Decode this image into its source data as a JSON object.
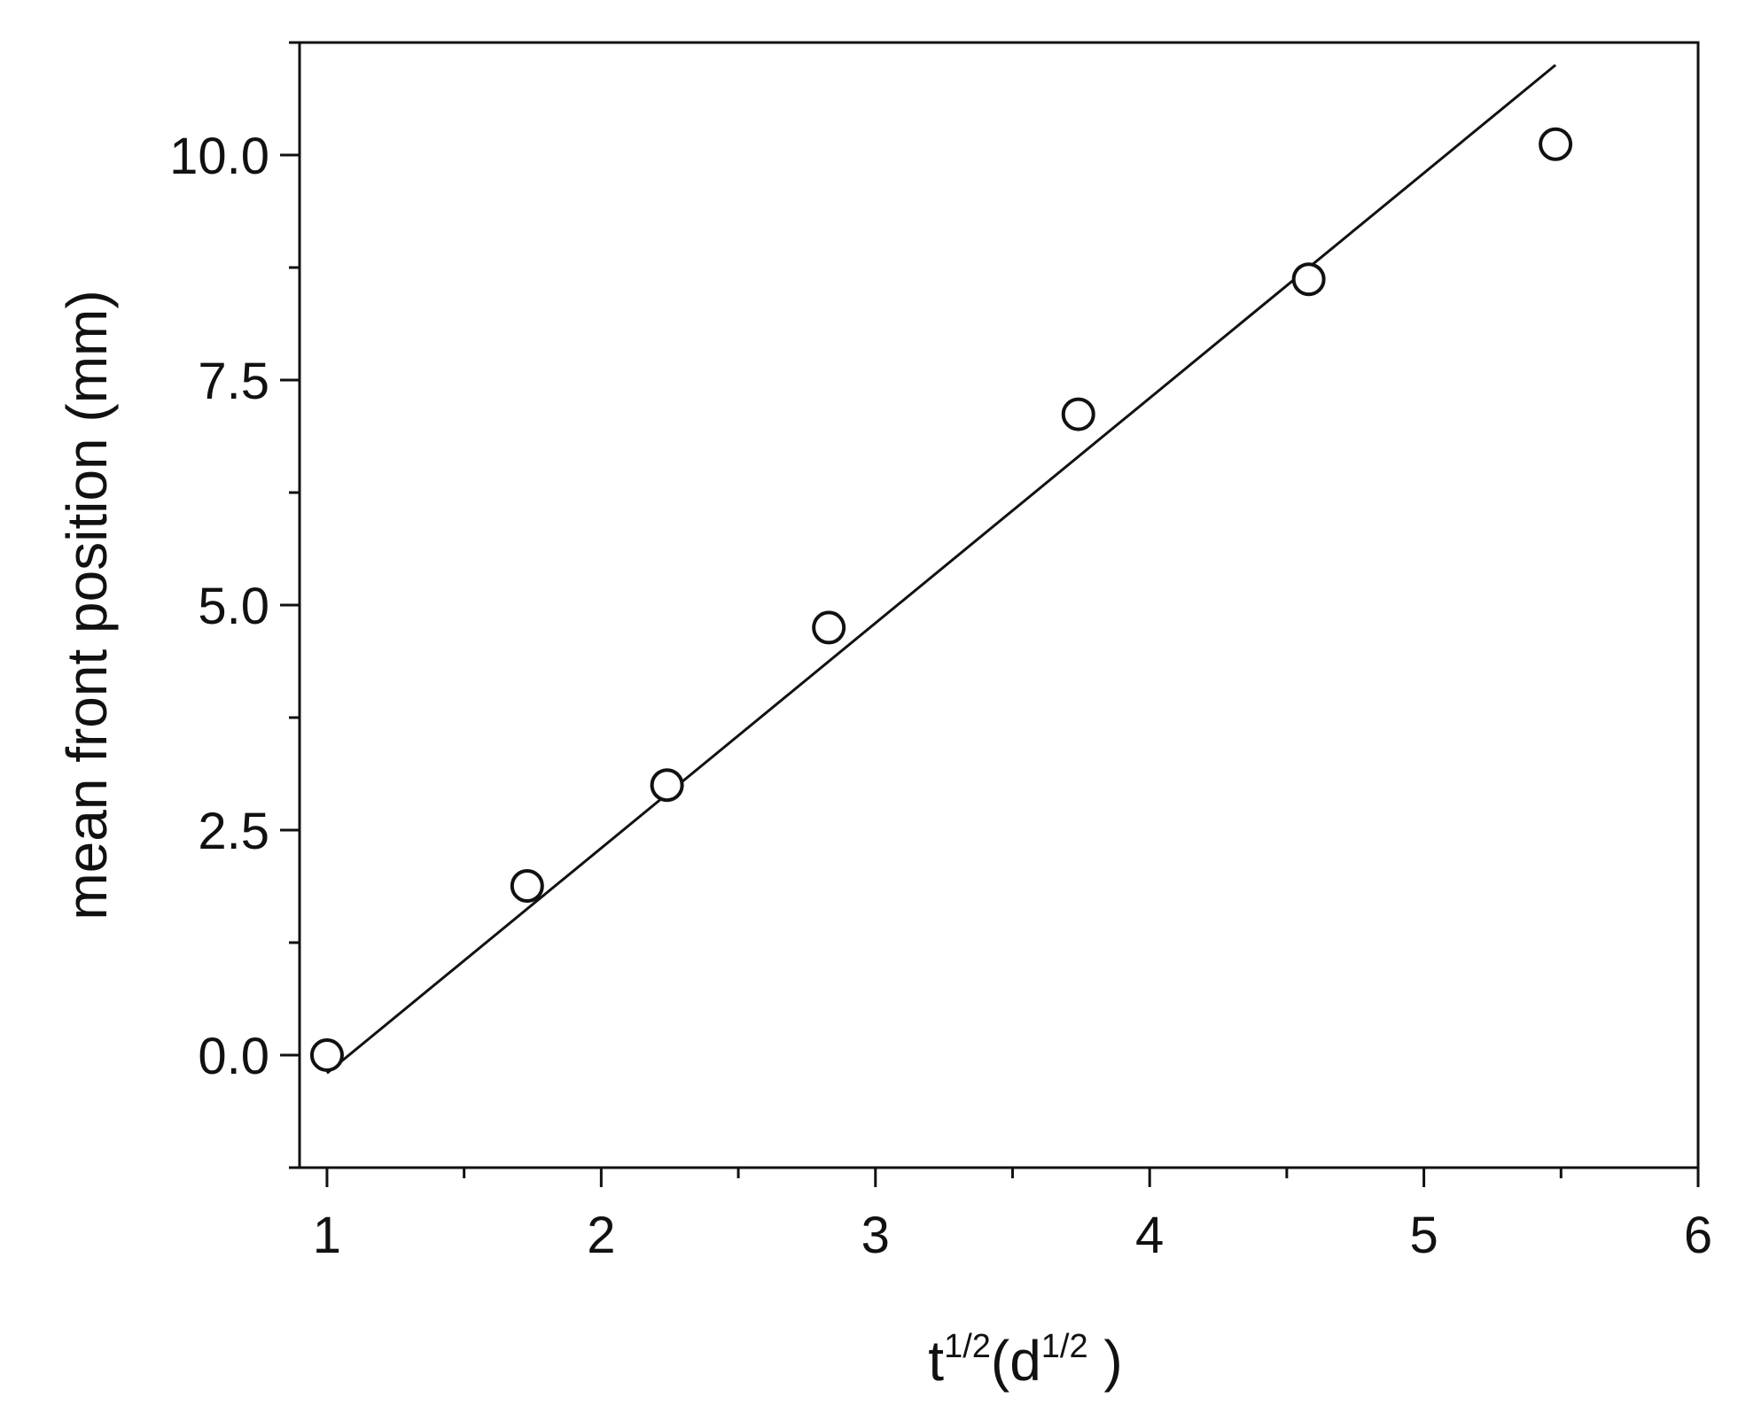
{
  "chart_data": {
    "type": "scatter",
    "xlabel": {
      "base": "t",
      "sup": "1/2",
      "mid": "(d",
      "sup2": "1/2",
      "end": " )"
    },
    "ylabel": "mean front position (mm)",
    "xlim": [
      0.9,
      6.0
    ],
    "ylim": [
      -1.25,
      11.25
    ],
    "x_ticks": [
      1,
      2,
      3,
      4,
      5,
      6
    ],
    "x_tick_labels": [
      "1",
      "2",
      "3",
      "4",
      "5",
      "6"
    ],
    "x_minor_ticks": [
      1.5,
      2.5,
      3.5,
      4.5,
      5.5
    ],
    "y_ticks": [
      0.0,
      2.5,
      5.0,
      7.5,
      10.0
    ],
    "y_tick_labels": [
      "0.0",
      "2.5",
      "5.0",
      "7.5",
      "10.0"
    ],
    "y_minor_ticks": [
      -1.25,
      1.25,
      3.75,
      6.25,
      8.75,
      11.25
    ],
    "grid": false,
    "series": [
      {
        "marker": "open-circle",
        "color": "#111111",
        "x": [
          1.0,
          1.73,
          2.24,
          2.83,
          3.74,
          4.58,
          5.48
        ],
        "y": [
          0.0,
          1.88,
          3.0,
          4.75,
          7.12,
          8.62,
          10.12
        ]
      }
    ],
    "fit_line": {
      "color": "#111111",
      "x": [
        1.0,
        5.48
      ],
      "y": [
        -0.2,
        11.0
      ]
    }
  }
}
